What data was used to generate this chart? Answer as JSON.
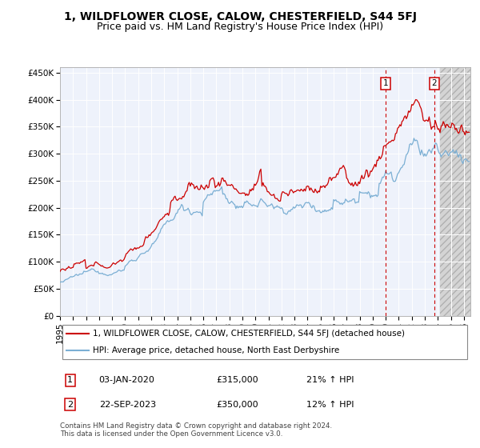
{
  "title": "1, WILDFLOWER CLOSE, CALOW, CHESTERFIELD, S44 5FJ",
  "subtitle": "Price paid vs. HM Land Registry's House Price Index (HPI)",
  "ylabel_ticks": [
    "£0",
    "£50K",
    "£100K",
    "£150K",
    "£200K",
    "£250K",
    "£300K",
    "£350K",
    "£400K",
    "£450K"
  ],
  "ytick_values": [
    0,
    50000,
    100000,
    150000,
    200000,
    250000,
    300000,
    350000,
    400000,
    450000
  ],
  "ylim": [
    0,
    460000
  ],
  "xlim_start": 1995.0,
  "xlim_end": 2026.5,
  "xtick_years": [
    1995,
    1996,
    1997,
    1998,
    1999,
    2000,
    2001,
    2002,
    2003,
    2004,
    2005,
    2006,
    2007,
    2008,
    2009,
    2010,
    2011,
    2012,
    2013,
    2014,
    2015,
    2016,
    2017,
    2018,
    2019,
    2020,
    2021,
    2022,
    2023,
    2024,
    2025,
    2026
  ],
  "legend_line1": "1, WILDFLOWER CLOSE, CALOW, CHESTERFIELD, S44 5FJ (detached house)",
  "legend_line2": "HPI: Average price, detached house, North East Derbyshire",
  "sale1_date": "03-JAN-2020",
  "sale1_price": "£315,000",
  "sale1_hpi": "21% ↑ HPI",
  "sale1_x": 2020.01,
  "sale2_date": "22-SEP-2023",
  "sale2_price": "£350,000",
  "sale2_hpi": "12% ↑ HPI",
  "sale2_x": 2023.72,
  "footer": "Contains HM Land Registry data © Crown copyright and database right 2024.\nThis data is licensed under the Open Government Licence v3.0.",
  "hpi_color": "#7bafd4",
  "price_color": "#cc0000",
  "background_plot": "#eef2fb",
  "future_start": 2024.17,
  "vline_color": "#cc0000",
  "title_fontsize": 10,
  "subtitle_fontsize": 9,
  "tick_fontsize": 7.5
}
